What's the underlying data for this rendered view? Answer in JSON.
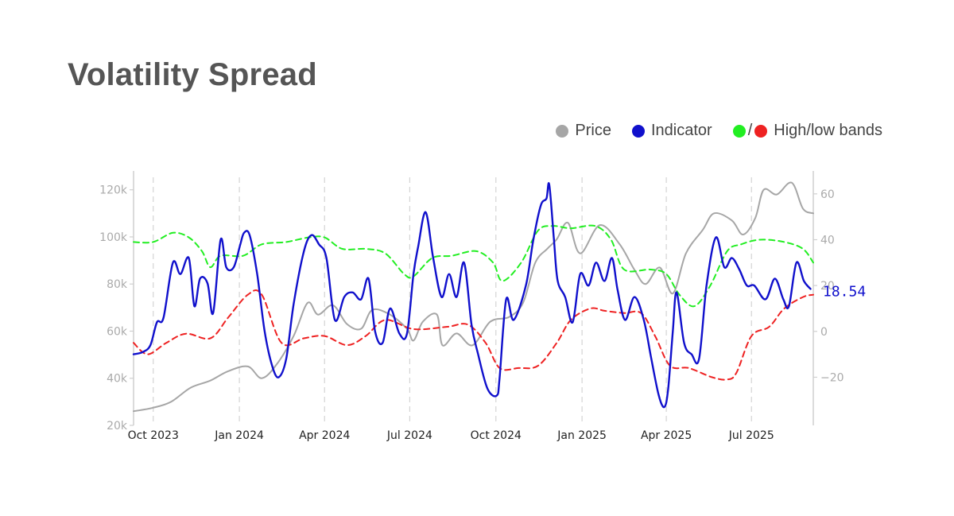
{
  "title": "Volatility Spread",
  "legend": {
    "price": "Price",
    "indicator": "Indicator",
    "bands_sep": "/",
    "bands": "High/low bands"
  },
  "colors": {
    "price": "#a6a6a6",
    "indicator": "#1010cc",
    "high_band": "#22ee22",
    "low_band": "#ee2222",
    "title": "#555555"
  },
  "chart_data": {
    "type": "line",
    "title": "Volatility Spread",
    "x_range": [
      "2023-09-10",
      "2025-09-05"
    ],
    "x_ticks": [
      {
        "date": "2023-10-01",
        "label": "Oct 2023"
      },
      {
        "date": "2024-01-01",
        "label": "Jan 2024"
      },
      {
        "date": "2024-04-01",
        "label": "Apr 2024"
      },
      {
        "date": "2024-07-01",
        "label": "Jul 2024"
      },
      {
        "date": "2024-10-01",
        "label": "Oct 2024"
      },
      {
        "date": "2025-01-01",
        "label": "Jan 2025"
      },
      {
        "date": "2025-04-01",
        "label": "Apr 2025"
      },
      {
        "date": "2025-07-01",
        "label": "Jul 2025"
      }
    ],
    "y_left": {
      "range": [
        20000,
        128000
      ],
      "ticks": [
        {
          "value": 20000,
          "label": "20k"
        },
        {
          "value": 40000,
          "label": "40k"
        },
        {
          "value": 60000,
          "label": "60k"
        },
        {
          "value": 80000,
          "label": "80k"
        },
        {
          "value": 100000,
          "label": "100k"
        },
        {
          "value": 120000,
          "label": "120k"
        }
      ]
    },
    "y_right": {
      "range": [
        -41,
        70
      ],
      "ticks": [
        {
          "value": -20,
          "label": "−20"
        },
        {
          "value": 0,
          "label": "0"
        },
        {
          "value": 20,
          "label": "20"
        },
        {
          "value": 40,
          "label": "40"
        },
        {
          "value": 60,
          "label": "60"
        }
      ]
    },
    "grid": "vertical dashed at x ticks",
    "legend_position": "top-right",
    "last_value_label": "18.54",
    "series": [
      {
        "name": "Price",
        "axis": "left",
        "points": [
          [
            "2023-09-10",
            26000
          ],
          [
            "2023-10-01",
            27500
          ],
          [
            "2023-10-20",
            30000
          ],
          [
            "2023-11-10",
            36000
          ],
          [
            "2023-12-01",
            39000
          ],
          [
            "2023-12-20",
            43000
          ],
          [
            "2024-01-10",
            45000
          ],
          [
            "2024-01-25",
            40000
          ],
          [
            "2024-02-10",
            46000
          ],
          [
            "2024-02-28",
            58000
          ],
          [
            "2024-03-14",
            72000
          ],
          [
            "2024-03-25",
            67000
          ],
          [
            "2024-04-10",
            71000
          ],
          [
            "2024-04-25",
            63000
          ],
          [
            "2024-05-10",
            61000
          ],
          [
            "2024-05-22",
            69000
          ],
          [
            "2024-06-10",
            67000
          ],
          [
            "2024-06-28",
            61000
          ],
          [
            "2024-07-05",
            56000
          ],
          [
            "2024-07-15",
            64000
          ],
          [
            "2024-07-30",
            67000
          ],
          [
            "2024-08-05",
            54000
          ],
          [
            "2024-08-20",
            59000
          ],
          [
            "2024-09-06",
            54000
          ],
          [
            "2024-09-25",
            64000
          ],
          [
            "2024-10-15",
            66000
          ],
          [
            "2024-10-30",
            72000
          ],
          [
            "2024-11-12",
            89000
          ],
          [
            "2024-11-25",
            95000
          ],
          [
            "2024-12-05",
            99000
          ],
          [
            "2024-12-17",
            106000
          ],
          [
            "2024-12-30",
            93000
          ],
          [
            "2025-01-20",
            105000
          ],
          [
            "2025-02-10",
            97000
          ],
          [
            "2025-02-26",
            86000
          ],
          [
            "2025-03-10",
            80000
          ],
          [
            "2025-03-25",
            87000
          ],
          [
            "2025-04-08",
            76000
          ],
          [
            "2025-04-22",
            93000
          ],
          [
            "2025-05-10",
            103000
          ],
          [
            "2025-05-22",
            110000
          ],
          [
            "2025-06-10",
            107000
          ],
          [
            "2025-06-22",
            101000
          ],
          [
            "2025-07-05",
            108000
          ],
          [
            "2025-07-14",
            120000
          ],
          [
            "2025-07-28",
            118000
          ],
          [
            "2025-08-13",
            123000
          ],
          [
            "2025-08-25",
            112000
          ],
          [
            "2025-09-05",
            110000
          ]
        ]
      },
      {
        "name": "Indicator",
        "axis": "right",
        "points": [
          [
            "2023-09-10",
            -10
          ],
          [
            "2023-09-20",
            -9
          ],
          [
            "2023-09-28",
            -6
          ],
          [
            "2023-10-05",
            4
          ],
          [
            "2023-10-12",
            6
          ],
          [
            "2023-10-22",
            30
          ],
          [
            "2023-10-30",
            25
          ],
          [
            "2023-11-08",
            32
          ],
          [
            "2023-11-14",
            11
          ],
          [
            "2023-11-20",
            23
          ],
          [
            "2023-11-28",
            21
          ],
          [
            "2023-12-04",
            8
          ],
          [
            "2023-12-12",
            40
          ],
          [
            "2023-12-18",
            28
          ],
          [
            "2023-12-26",
            28
          ],
          [
            "2024-01-02",
            38
          ],
          [
            "2024-01-06",
            43
          ],
          [
            "2024-01-12",
            42
          ],
          [
            "2024-01-20",
            25
          ],
          [
            "2024-01-28",
            0
          ],
          [
            "2024-02-05",
            -15
          ],
          [
            "2024-02-12",
            -20
          ],
          [
            "2024-02-20",
            -12
          ],
          [
            "2024-02-28",
            12
          ],
          [
            "2024-03-10",
            35
          ],
          [
            "2024-03-18",
            42
          ],
          [
            "2024-03-26",
            38
          ],
          [
            "2024-04-03",
            32
          ],
          [
            "2024-04-12",
            5
          ],
          [
            "2024-04-22",
            15
          ],
          [
            "2024-05-01",
            17
          ],
          [
            "2024-05-10",
            14
          ],
          [
            "2024-05-18",
            23
          ],
          [
            "2024-05-25",
            0
          ],
          [
            "2024-06-02",
            -5
          ],
          [
            "2024-06-10",
            10
          ],
          [
            "2024-06-20",
            -1
          ],
          [
            "2024-06-28",
            -1
          ],
          [
            "2024-07-05",
            25
          ],
          [
            "2024-07-10",
            37
          ],
          [
            "2024-07-18",
            52
          ],
          [
            "2024-07-26",
            32
          ],
          [
            "2024-08-04",
            15
          ],
          [
            "2024-08-12",
            25
          ],
          [
            "2024-08-20",
            15
          ],
          [
            "2024-08-28",
            30
          ],
          [
            "2024-09-05",
            3
          ],
          [
            "2024-09-12",
            -10
          ],
          [
            "2024-09-22",
            -25
          ],
          [
            "2024-10-02",
            -28
          ],
          [
            "2024-10-05",
            -20
          ],
          [
            "2024-10-12",
            14
          ],
          [
            "2024-10-20",
            5
          ],
          [
            "2024-11-02",
            20
          ],
          [
            "2024-11-10",
            40
          ],
          [
            "2024-11-18",
            55
          ],
          [
            "2024-11-24",
            58
          ],
          [
            "2024-11-27",
            64
          ],
          [
            "2024-12-02",
            40
          ],
          [
            "2024-12-06",
            22
          ],
          [
            "2024-12-14",
            15
          ],
          [
            "2024-12-22",
            4
          ],
          [
            "2024-12-30",
            25
          ],
          [
            "2025-01-08",
            20
          ],
          [
            "2025-01-16",
            30
          ],
          [
            "2025-01-25",
            22
          ],
          [
            "2025-02-02",
            32
          ],
          [
            "2025-02-08",
            18
          ],
          [
            "2025-02-16",
            5
          ],
          [
            "2025-02-26",
            15
          ],
          [
            "2025-03-08",
            5
          ],
          [
            "2025-03-16",
            -12
          ],
          [
            "2025-03-24",
            -28
          ],
          [
            "2025-03-30",
            -33
          ],
          [
            "2025-04-03",
            -25
          ],
          [
            "2025-04-08",
            0
          ],
          [
            "2025-04-12",
            17
          ],
          [
            "2025-04-20",
            -5
          ],
          [
            "2025-04-28",
            -10
          ],
          [
            "2025-05-06",
            -12
          ],
          [
            "2025-05-14",
            20
          ],
          [
            "2025-05-24",
            41
          ],
          [
            "2025-06-02",
            28
          ],
          [
            "2025-06-10",
            32
          ],
          [
            "2025-06-18",
            27
          ],
          [
            "2025-06-26",
            20
          ],
          [
            "2025-07-04",
            20
          ],
          [
            "2025-07-16",
            14
          ],
          [
            "2025-07-26",
            23
          ],
          [
            "2025-08-04",
            14
          ],
          [
            "2025-08-10",
            11
          ],
          [
            "2025-08-18",
            30
          ],
          [
            "2025-08-26",
            22
          ],
          [
            "2025-09-02",
            18.54
          ]
        ]
      },
      {
        "name": "High band",
        "axis": "right",
        "points": [
          [
            "2023-09-10",
            39
          ],
          [
            "2023-10-01",
            39
          ],
          [
            "2023-10-22",
            43
          ],
          [
            "2023-11-08",
            41
          ],
          [
            "2023-11-22",
            35
          ],
          [
            "2023-12-01",
            28
          ],
          [
            "2023-12-12",
            33
          ],
          [
            "2024-01-05",
            33
          ],
          [
            "2024-01-25",
            38
          ],
          [
            "2024-02-20",
            39
          ],
          [
            "2024-03-15",
            41
          ],
          [
            "2024-04-01",
            41
          ],
          [
            "2024-04-20",
            36
          ],
          [
            "2024-05-15",
            36
          ],
          [
            "2024-06-05",
            34
          ],
          [
            "2024-06-25",
            25
          ],
          [
            "2024-07-05",
            24
          ],
          [
            "2024-07-25",
            32
          ],
          [
            "2024-08-15",
            33
          ],
          [
            "2024-09-10",
            35
          ],
          [
            "2024-09-28",
            30
          ],
          [
            "2024-10-08",
            22
          ],
          [
            "2024-10-28",
            30
          ],
          [
            "2024-11-15",
            44
          ],
          [
            "2024-12-01",
            46
          ],
          [
            "2024-12-20",
            45
          ],
          [
            "2025-01-15",
            46
          ],
          [
            "2025-02-01",
            40
          ],
          [
            "2025-02-15",
            27
          ],
          [
            "2025-03-15",
            27
          ],
          [
            "2025-04-01",
            25
          ],
          [
            "2025-04-15",
            16
          ],
          [
            "2025-05-01",
            11
          ],
          [
            "2025-05-18",
            20
          ],
          [
            "2025-06-05",
            35
          ],
          [
            "2025-06-20",
            38
          ],
          [
            "2025-07-10",
            40
          ],
          [
            "2025-08-05",
            39
          ],
          [
            "2025-08-25",
            36
          ],
          [
            "2025-09-05",
            30
          ]
        ]
      },
      {
        "name": "Low band",
        "axis": "right",
        "points": [
          [
            "2023-09-10",
            -5
          ],
          [
            "2023-09-25",
            -10
          ],
          [
            "2023-10-15",
            -5
          ],
          [
            "2023-11-05",
            -1
          ],
          [
            "2023-12-01",
            -3
          ],
          [
            "2023-12-20",
            6
          ],
          [
            "2024-01-10",
            16
          ],
          [
            "2024-01-25",
            16
          ],
          [
            "2024-02-15",
            -5
          ],
          [
            "2024-03-10",
            -3
          ],
          [
            "2024-04-01",
            -2
          ],
          [
            "2024-04-25",
            -6
          ],
          [
            "2024-05-15",
            -2
          ],
          [
            "2024-06-05",
            5
          ],
          [
            "2024-07-05",
            1
          ],
          [
            "2024-08-10",
            2
          ],
          [
            "2024-09-01",
            3
          ],
          [
            "2024-09-20",
            -5
          ],
          [
            "2024-10-05",
            -16
          ],
          [
            "2024-10-25",
            -16
          ],
          [
            "2024-11-15",
            -15
          ],
          [
            "2024-12-05",
            -5
          ],
          [
            "2024-12-20",
            5
          ],
          [
            "2025-01-10",
            10
          ],
          [
            "2025-01-25",
            9
          ],
          [
            "2025-02-15",
            8
          ],
          [
            "2025-03-05",
            8
          ],
          [
            "2025-03-20",
            -2
          ],
          [
            "2025-04-05",
            -15
          ],
          [
            "2025-04-25",
            -16
          ],
          [
            "2025-05-20",
            -20
          ],
          [
            "2025-06-05",
            -21
          ],
          [
            "2025-06-15",
            -18
          ],
          [
            "2025-07-01",
            -2
          ],
          [
            "2025-07-20",
            2
          ],
          [
            "2025-08-05",
            10
          ],
          [
            "2025-08-25",
            15
          ],
          [
            "2025-09-05",
            16
          ]
        ]
      }
    ]
  }
}
